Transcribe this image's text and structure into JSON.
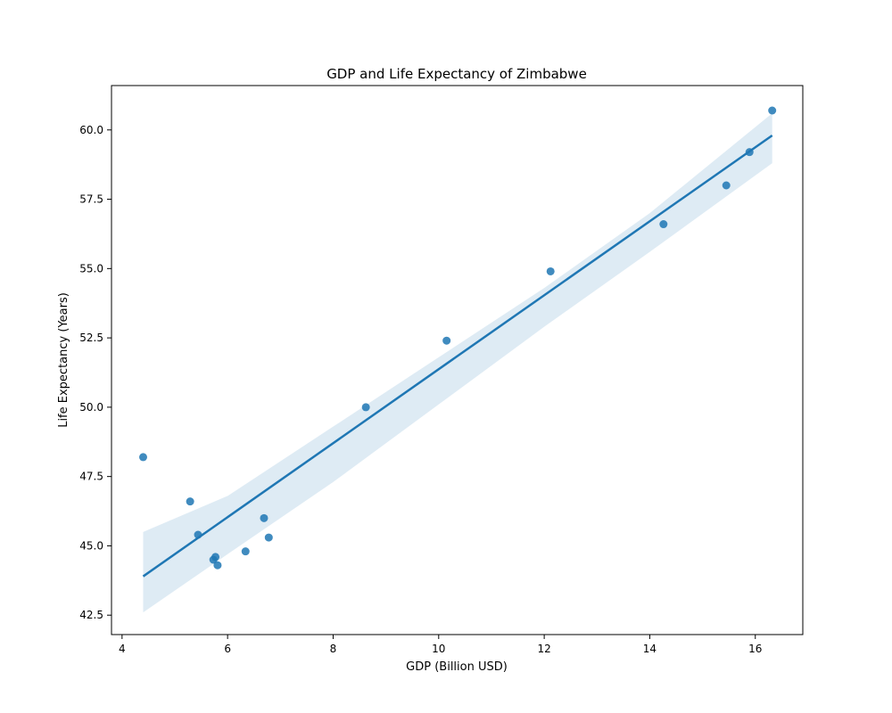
{
  "chart_data": {
    "type": "scatter",
    "title": "GDP and Life Expectancy of Zimbabwe",
    "xlabel": "GDP (Billion USD)",
    "ylabel": "Life Expectancy (Years)",
    "xlim": [
      3.8,
      16.9
    ],
    "ylim": [
      41.8,
      61.6
    ],
    "xticks": [
      4,
      6,
      8,
      10,
      12,
      14,
      16
    ],
    "yticks": [
      42.5,
      45.0,
      47.5,
      50.0,
      52.5,
      55.0,
      57.5,
      60.0
    ],
    "xtick_labels": [
      "4",
      "6",
      "8",
      "10",
      "12",
      "14",
      "16"
    ],
    "ytick_labels": [
      "42.5",
      "45.0",
      "47.5",
      "50.0",
      "52.5",
      "55.0",
      "57.5",
      "60.0"
    ],
    "grid": false,
    "points": [
      {
        "x": 4.4,
        "y": 48.2
      },
      {
        "x": 5.29,
        "y": 46.6
      },
      {
        "x": 5.44,
        "y": 45.4
      },
      {
        "x": 5.73,
        "y": 44.5
      },
      {
        "x": 5.77,
        "y": 44.6
      },
      {
        "x": 5.81,
        "y": 44.3
      },
      {
        "x": 6.34,
        "y": 44.8
      },
      {
        "x": 6.69,
        "y": 46.0
      },
      {
        "x": 6.78,
        "y": 45.3
      },
      {
        "x": 8.62,
        "y": 50.0
      },
      {
        "x": 10.15,
        "y": 52.4
      },
      {
        "x": 12.12,
        "y": 54.9
      },
      {
        "x": 14.26,
        "y": 56.6
      },
      {
        "x": 15.45,
        "y": 58.0
      },
      {
        "x": 15.89,
        "y": 59.2
      },
      {
        "x": 16.32,
        "y": 60.7
      }
    ],
    "regression": {
      "x": [
        4.4,
        16.32
      ],
      "y": [
        43.9,
        59.8
      ]
    },
    "confidence_band": {
      "x": [
        4.4,
        6.0,
        8.0,
        10.0,
        12.0,
        14.0,
        16.32
      ],
      "upper": [
        45.5,
        46.8,
        49.3,
        51.8,
        54.3,
        57.0,
        60.6
      ],
      "lower": [
        42.6,
        44.7,
        47.3,
        50.1,
        52.9,
        55.6,
        58.8
      ]
    },
    "colors": {
      "point": "#1f77b4",
      "line": "#1f77b4",
      "band": "#1f77b4"
    }
  }
}
